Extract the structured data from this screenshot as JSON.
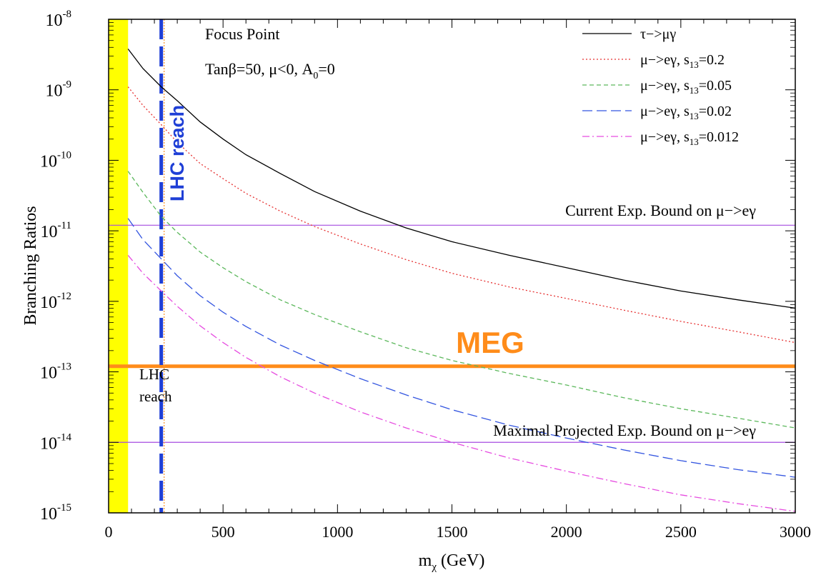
{
  "chart_data": {
    "type": "line",
    "yscale": "log",
    "xlabel": "m",
    "xlabel_sub": "χ",
    "xlabel_unit": " (GeV)",
    "ylabel": "Branching Ratios",
    "xlim": [
      0,
      3000
    ],
    "ylim_exponent": [
      -15,
      -8
    ],
    "x_ticks": [
      "0",
      "500",
      "1000",
      "1500",
      "2000",
      "2500",
      "3000"
    ],
    "y_ticks": [
      {
        "base": "10",
        "exp": "-8"
      },
      {
        "base": "10",
        "exp": "-9"
      },
      {
        "base": "10",
        "exp": "-10"
      },
      {
        "base": "10",
        "exp": "-11"
      },
      {
        "base": "10",
        "exp": "-12"
      },
      {
        "base": "10",
        "exp": "-13"
      },
      {
        "base": "10",
        "exp": "-14"
      },
      {
        "base": "10",
        "exp": "-15"
      }
    ],
    "annotations": {
      "title1": "Focus Point",
      "title2_prefix": "Tanβ=50, μ<0, A",
      "title2_sub": "0",
      "title2_suffix": "=0",
      "lhc_vertical": "LHC reach",
      "lhc_small_1": "LHC",
      "lhc_small_2": "reach",
      "meg": "MEG",
      "current_bound": "Current Exp. Bound on μ−>eγ",
      "projected_bound": "Maximal Projected Exp. Bound on μ−>eγ"
    },
    "excluded_band": {
      "x_from": 0,
      "x_to": 85,
      "color": "#ffff00"
    },
    "lhc_reach_x": 230,
    "hlines": [
      {
        "name": "current",
        "y": 1.2e-11,
        "color": "#a64ce0"
      },
      {
        "name": "meg",
        "y": 1.2e-13,
        "color": "#ff8c1a"
      },
      {
        "name": "projected",
        "y": 1e-14,
        "color": "#a64ce0"
      }
    ],
    "series": [
      {
        "legend": "τ−>μγ",
        "legend_sub": "",
        "legend_suffix": "",
        "color": "#000000",
        "dash": "",
        "x": [
          85,
          150,
          230,
          300,
          400,
          500,
          600,
          750,
          900,
          1100,
          1300,
          1500,
          1750,
          2000,
          2250,
          2500,
          2750,
          3000
        ],
        "y": [
          3.8e-09,
          2e-09,
          1.1e-09,
          7e-10,
          3.5e-10,
          2e-10,
          1.2e-10,
          6.5e-11,
          3.6e-11,
          1.9e-11,
          1.1e-11,
          7e-12,
          4.5e-12,
          3e-12,
          2e-12,
          1.4e-12,
          1.05e-12,
          8e-13
        ]
      },
      {
        "legend": "μ−>eγ, s",
        "legend_sub": "13",
        "legend_suffix": "=0.2",
        "color": "#e63030",
        "dash": "2,3",
        "x": [
          85,
          150,
          230,
          300,
          400,
          500,
          600,
          750,
          900,
          1100,
          1300,
          1500,
          1750,
          2000,
          2250,
          2500,
          2750,
          3000
        ],
        "y": [
          1.1e-09,
          6e-10,
          3.2e-10,
          1.8e-10,
          9e-11,
          5.5e-11,
          3.4e-11,
          1.9e-11,
          1.15e-11,
          6.5e-12,
          3.9e-12,
          2.5e-12,
          1.6e-12,
          1.1e-12,
          7.5e-13,
          5.2e-13,
          3.7e-13,
          2.6e-13
        ]
      },
      {
        "legend": "μ−>eγ, s",
        "legend_sub": "13",
        "legend_suffix": "=0.05",
        "color": "#5cb85c",
        "dash": "6,4",
        "x": [
          85,
          150,
          230,
          300,
          400,
          500,
          600,
          750,
          900,
          1100,
          1300,
          1500,
          1750,
          2000,
          2250,
          2500,
          2750,
          3000
        ],
        "y": [
          7e-11,
          3.5e-11,
          1.6e-11,
          9.5e-12,
          5e-12,
          3e-12,
          1.9e-12,
          1.05e-12,
          6.5e-13,
          3.7e-13,
          2.2e-13,
          1.45e-13,
          9.5e-14,
          6.5e-14,
          4.3e-14,
          3e-14,
          2.2e-14,
          1.6e-14
        ]
      },
      {
        "legend": "μ−>eγ, s",
        "legend_sub": "13",
        "legend_suffix": "=0.02",
        "color": "#3355e0",
        "dash": "14,6",
        "x": [
          85,
          150,
          230,
          300,
          400,
          500,
          600,
          750,
          900,
          1100,
          1300,
          1500,
          1750,
          2000,
          2250,
          2500,
          2750,
          3000
        ],
        "y": [
          1.5e-11,
          7.5e-12,
          4e-12,
          2.3e-12,
          1.2e-12,
          7e-13,
          4.4e-13,
          2.4e-13,
          1.45e-13,
          8e-14,
          4.7e-14,
          2.9e-14,
          1.75e-14,
          1.15e-14,
          7.8e-15,
          5.5e-15,
          4.1e-15,
          3.2e-15
        ]
      },
      {
        "legend": "μ−>eγ, s",
        "legend_sub": "13",
        "legend_suffix": "=0.012",
        "color": "#e64ce0",
        "dash": "10,4,2,4",
        "x": [
          85,
          150,
          230,
          300,
          400,
          500,
          600,
          750,
          900,
          1100,
          1300,
          1500,
          1750,
          2000,
          2250,
          2500,
          2750,
          3000
        ],
        "y": [
          4.5e-12,
          2.5e-12,
          1.4e-12,
          8.5e-13,
          4.5e-13,
          2.6e-13,
          1.6e-13,
          8.5e-14,
          5e-14,
          2.7e-14,
          1.6e-14,
          1e-14,
          6e-15,
          3.9e-15,
          2.6e-15,
          1.8e-15,
          1.35e-15,
          1.05e-15
        ]
      }
    ]
  }
}
